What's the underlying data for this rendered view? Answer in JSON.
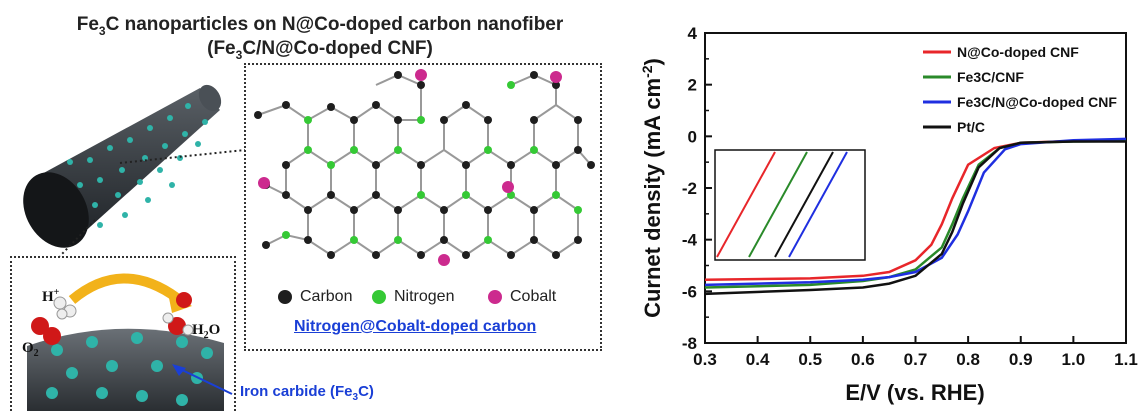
{
  "schematic": {
    "title_line1": "Fe3C nanoparticles on N@Co-doped carbon nanofiber",
    "title_line2": "(Fe3C/N@Co-doped CNF)",
    "inset_legend": [
      {
        "label": "Carbon",
        "color": "#1e1e1e"
      },
      {
        "label": "Nitrogen",
        "color": "#35c935"
      },
      {
        "label": "Cobalt",
        "color": "#cc2a8e"
      }
    ],
    "inset_caption": "Nitrogen@Cobalt-doped carbon",
    "reaction": {
      "h_plus": "H+",
      "o2": "O2",
      "h2o": "H2O"
    },
    "iron_label": "Iron carbide (Fe3C)",
    "colors": {
      "fiber": "#3a3f44",
      "nanoparticle": "#2fb3a8",
      "arrow": "#f2b21a",
      "pointer": "#1a3fd6"
    }
  },
  "chart_data": {
    "type": "line",
    "xlabel": "E/V (vs. RHE)",
    "ylabel": "Curnet density (mA cm-2)",
    "xlim": [
      0.3,
      1.1
    ],
    "ylim": [
      -8,
      4
    ],
    "xticks": [
      "0.3",
      "0.4",
      "0.5",
      "0.6",
      "0.7",
      "0.8",
      "0.9",
      "1.0",
      "1.1"
    ],
    "yticks": [
      "4",
      "2",
      "0",
      "-2",
      "-4",
      "-6",
      "-8"
    ],
    "grid": false,
    "legend_position": "top-right",
    "series": [
      {
        "name": "N@Co-doped CNF",
        "color": "#e8262a",
        "x": [
          0.3,
          0.5,
          0.6,
          0.65,
          0.7,
          0.73,
          0.75,
          0.77,
          0.8,
          0.85,
          0.9,
          1.0,
          1.1
        ],
        "y": [
          -5.55,
          -5.5,
          -5.4,
          -5.25,
          -4.8,
          -4.2,
          -3.4,
          -2.4,
          -1.1,
          -0.45,
          -0.25,
          -0.18,
          -0.15
        ]
      },
      {
        "name": "Fe3C/CNF",
        "color": "#2a8a2a",
        "x": [
          0.3,
          0.5,
          0.6,
          0.65,
          0.7,
          0.75,
          0.77,
          0.79,
          0.82,
          0.86,
          0.9,
          1.0,
          1.1
        ],
        "y": [
          -5.85,
          -5.75,
          -5.6,
          -5.45,
          -5.15,
          -4.3,
          -3.4,
          -2.4,
          -1.1,
          -0.45,
          -0.25,
          -0.2,
          -0.18
        ]
      },
      {
        "name": "Fe3C/N@Co-doped CNF",
        "color": "#1f2fe0",
        "x": [
          0.3,
          0.5,
          0.6,
          0.65,
          0.7,
          0.75,
          0.78,
          0.8,
          0.83,
          0.87,
          0.9,
          1.0,
          1.1
        ],
        "y": [
          -5.75,
          -5.65,
          -5.55,
          -5.45,
          -5.25,
          -4.7,
          -3.8,
          -2.9,
          -1.4,
          -0.5,
          -0.3,
          -0.15,
          -0.1
        ]
      },
      {
        "name": "Pt/C",
        "color": "#111111",
        "x": [
          0.3,
          0.5,
          0.6,
          0.65,
          0.7,
          0.75,
          0.77,
          0.79,
          0.82,
          0.86,
          0.9,
          1.0,
          1.1
        ],
        "y": [
          -6.1,
          -5.95,
          -5.85,
          -5.7,
          -5.4,
          -4.55,
          -3.7,
          -2.6,
          -1.2,
          -0.45,
          -0.25,
          -0.2,
          -0.2
        ]
      }
    ]
  }
}
